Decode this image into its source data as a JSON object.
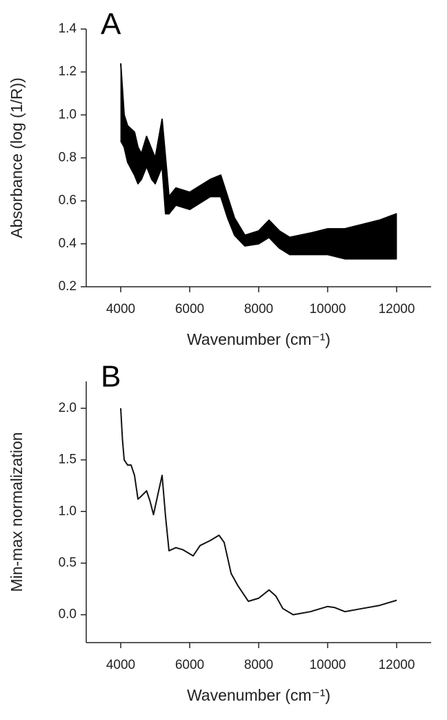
{
  "chart_data": [
    {
      "type": "range",
      "panel_label": "A",
      "ylabel": "Absorbance (log (1/R))",
      "xlabel": "Wavenumber (cm⁻¹)",
      "color": "#000000",
      "xlim": [
        3000,
        13000
      ],
      "ylim": [
        0.2,
        1.4
      ],
      "xticks": [
        4000,
        6000,
        8000,
        10000,
        12000
      ],
      "yticks": [
        0.2,
        0.4,
        0.6,
        0.8,
        {
          "value": 1.0,
          "label": "1.0"
        },
        1.2,
        1.4
      ],
      "x": [
        4000,
        4100,
        4200,
        4400,
        4500,
        4600,
        4750,
        4900,
        5000,
        5200,
        5300,
        5400,
        5600,
        6000,
        6200,
        6600,
        6900,
        7100,
        7300,
        7600,
        8000,
        8300,
        8600,
        8900,
        9500,
        10000,
        10500,
        11000,
        11500,
        12000
      ],
      "high": [
        1.24,
        1.0,
        0.95,
        0.92,
        0.85,
        0.82,
        0.9,
        0.84,
        0.8,
        0.98,
        0.8,
        0.62,
        0.66,
        0.64,
        0.66,
        0.7,
        0.72,
        0.62,
        0.52,
        0.44,
        0.46,
        0.51,
        0.46,
        0.43,
        0.45,
        0.47,
        0.47,
        0.49,
        0.51,
        0.54
      ],
      "low": [
        0.88,
        0.85,
        0.78,
        0.72,
        0.68,
        0.7,
        0.76,
        0.7,
        0.68,
        0.76,
        0.54,
        0.54,
        0.58,
        0.56,
        0.58,
        0.62,
        0.62,
        0.52,
        0.44,
        0.39,
        0.4,
        0.43,
        0.38,
        0.35,
        0.35,
        0.35,
        0.33,
        0.33,
        0.33,
        0.33
      ]
    },
    {
      "type": "line",
      "panel_label": "B",
      "ylabel": "Min-max normalization",
      "xlabel": "Wavenumber (cm⁻¹)",
      "color": "#111111",
      "xlim": [
        3000,
        13000
      ],
      "ylim": [
        -0.27,
        2.26
      ],
      "xticks": [
        4000,
        6000,
        8000,
        10000,
        12000
      ],
      "yticks": [
        {
          "value": 0.0,
          "label": "0.0"
        },
        0.5,
        {
          "value": 1.0,
          "label": "1.0"
        },
        1.5,
        {
          "value": 2.0,
          "label": "2.0"
        }
      ],
      "x": [
        4000,
        4050,
        4100,
        4200,
        4300,
        4400,
        4500,
        4600,
        4750,
        4850,
        4950,
        5100,
        5200,
        5300,
        5400,
        5600,
        5800,
        6100,
        6300,
        6600,
        6850,
        7000,
        7200,
        7400,
        7700,
        8000,
        8300,
        8500,
        8700,
        9000,
        9500,
        10000,
        10200,
        10500,
        11000,
        11500,
        12000
      ],
      "values": [
        2.0,
        1.7,
        1.5,
        1.45,
        1.45,
        1.35,
        1.12,
        1.15,
        1.2,
        1.1,
        0.97,
        1.2,
        1.35,
        0.95,
        0.62,
        0.65,
        0.63,
        0.57,
        0.67,
        0.72,
        0.77,
        0.7,
        0.4,
        0.28,
        0.13,
        0.16,
        0.24,
        0.18,
        0.06,
        0.0,
        0.03,
        0.08,
        0.07,
        0.03,
        0.06,
        0.09,
        0.14
      ]
    }
  ]
}
